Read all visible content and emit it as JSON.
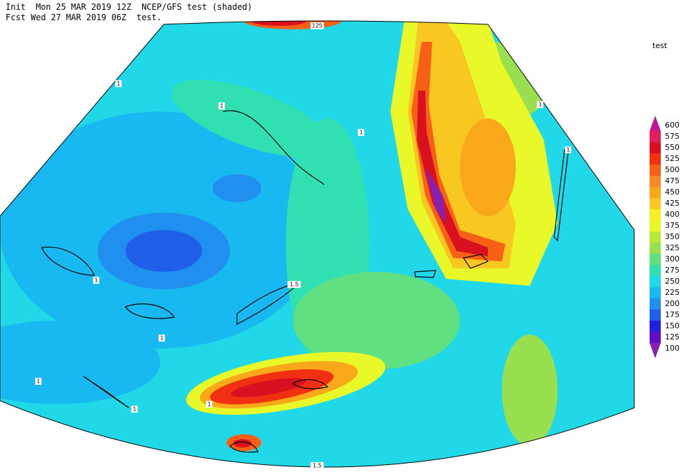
{
  "header": {
    "line1": "Init  Mon 25 MAR 2019 12Z  NCEP/GFS test (shaded)",
    "line2": "Fcst Wed 27 MAR 2019 06Z  test."
  },
  "legend": {
    "title": "test",
    "levels": [
      600,
      575,
      550,
      525,
      500,
      475,
      450,
      425,
      400,
      375,
      350,
      325,
      300,
      275,
      250,
      225,
      200,
      175,
      150,
      125,
      100
    ],
    "colors": [
      "#c0188c",
      "#e0205a",
      "#d81020",
      "#f03010",
      "#f86018",
      "#f88828",
      "#f8a818",
      "#f8c820",
      "#f8f020",
      "#e8f828",
      "#b8e838",
      "#98e050",
      "#60e080",
      "#30e0b0",
      "#20d8e8",
      "#18b8f0",
      "#2090f0",
      "#2060e8",
      "#2020e0",
      "#6010c0",
      "#8820b0"
    ]
  },
  "map": {
    "contour_labels": [
      "1",
      "1",
      "1",
      "1",
      "1",
      "1",
      "1",
      "1",
      "1",
      "1",
      "125",
      "1.5",
      "1.5"
    ]
  }
}
